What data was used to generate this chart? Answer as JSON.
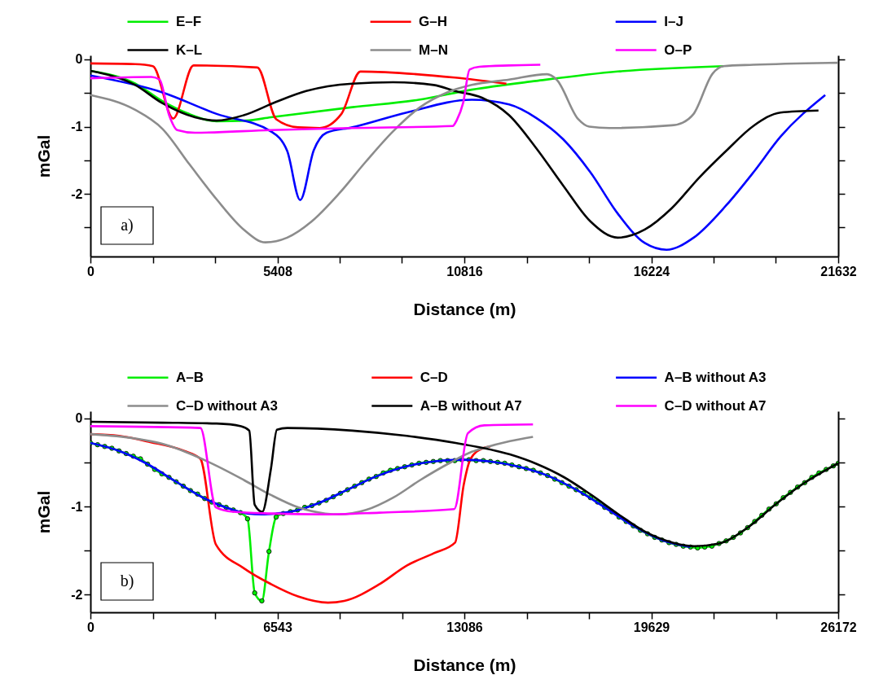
{
  "chart_data": [
    {
      "type": "line",
      "xlabel": "Distance (m)",
      "ylabel": "mGal",
      "legend": "top",
      "grid": false,
      "annotations": [
        "a)"
      ],
      "xlim": [
        0,
        21632
      ],
      "ylim": [
        -2.93,
        0.06
      ],
      "xticks": [
        0,
        {
          "value": 1802.67,
          "label": null
        },
        {
          "value": 3605.33,
          "label": null
        },
        5408,
        {
          "value": 7210.67,
          "label": null
        },
        {
          "value": 9013.33,
          "label": null
        },
        10816,
        {
          "value": 12618.67,
          "label": null
        },
        {
          "value": 14421.33,
          "label": null
        },
        16224,
        {
          "value": 18026.67,
          "label": null
        },
        {
          "value": 19829.33,
          "label": null
        },
        21632
      ],
      "yticks": [
        0,
        {
          "value": -0.5,
          "label": null
        },
        -1,
        {
          "value": -1.5,
          "label": null
        },
        -2,
        {
          "value": -2.5,
          "label": null
        }
      ],
      "series": [
        {
          "name": "E–F",
          "color": "#00ee00",
          "x": [
            0,
            1300,
            2080,
            2800,
            3650,
            4500,
            5220,
            7575,
            9500,
            11030,
            12896,
            15251,
            18313
          ],
          "values": [
            -0.17,
            -0.36,
            -0.62,
            -0.8,
            -0.92,
            -0.91,
            -0.86,
            -0.71,
            -0.6,
            -0.45,
            -0.32,
            -0.18,
            -0.1
          ]
        },
        {
          "name": "G–H",
          "color": "#ff0000",
          "x": [
            0,
            1295,
            1806,
            2394,
            2983,
            4828,
            5377,
            6005,
            6633,
            7261,
            7811,
            10541,
            12033
          ],
          "values": [
            -0.06,
            -0.07,
            -0.1,
            -0.88,
            -0.09,
            -0.12,
            -0.89,
            -1.01,
            -1.02,
            -0.81,
            -0.18,
            -0.27,
            -0.36
          ]
        },
        {
          "name": "I–J",
          "color": "#0000ff",
          "x": [
            0,
            2080,
            3650,
            5220,
            5691,
            6068,
            6461,
            6830,
            7575,
            9145,
            11030,
            12111,
            12896,
            13681,
            14466,
            15251,
            16036,
            16664,
            17449,
            18391,
            19176,
            19961,
            21256
          ],
          "values": [
            -0.24,
            -0.49,
            -0.81,
            -1.07,
            -1.36,
            -2.09,
            -1.35,
            -1.09,
            -1.01,
            -0.79,
            -0.6,
            -0.67,
            -0.87,
            -1.19,
            -1.68,
            -2.29,
            -2.73,
            -2.83,
            -2.65,
            -2.17,
            -1.68,
            -1.15,
            -0.53
          ]
        },
        {
          "name": "K–L",
          "color": "#000000",
          "x": [
            0,
            1295,
            2080,
            3022,
            3650,
            4435,
            5377,
            6240,
            7575,
            8753,
            9930,
            10541,
            11326,
            12111,
            12896,
            13681,
            14466,
            15251,
            16036,
            16821,
            17606,
            18391,
            19176,
            19961,
            21060
          ],
          "values": [
            -0.17,
            -0.38,
            -0.65,
            -0.86,
            -0.91,
            -0.83,
            -0.63,
            -0.47,
            -0.36,
            -0.34,
            -0.38,
            -0.47,
            -0.57,
            -0.83,
            -1.32,
            -1.88,
            -2.41,
            -2.65,
            -2.53,
            -2.21,
            -1.76,
            -1.36,
            -0.99,
            -0.79,
            -0.76
          ]
        },
        {
          "name": "M–N",
          "color": "#8c8c8c",
          "x": [
            0,
            1295,
            2080,
            2865,
            3650,
            4435,
            5063,
            5691,
            6398,
            7183,
            7968,
            8753,
            9538,
            10323,
            11030,
            12111,
            13210,
            13485,
            14113,
            14427,
            15016,
            16821,
            17135,
            17449,
            17999,
            18313,
            19176,
            21609
          ],
          "values": [
            -0.53,
            -0.75,
            -1.03,
            -1.56,
            -2.08,
            -2.53,
            -2.72,
            -2.65,
            -2.41,
            -2.0,
            -1.52,
            -1.07,
            -0.71,
            -0.49,
            -0.38,
            -0.3,
            -0.22,
            -0.3,
            -0.89,
            -1.0,
            -1.02,
            -0.98,
            -0.94,
            -0.81,
            -0.21,
            -0.1,
            -0.08,
            -0.05
          ]
        },
        {
          "name": "O–P",
          "color": "#ff00ff",
          "x": [
            0,
            1766,
            2002,
            2277,
            2512,
            3022,
            5220,
            7575,
            10480,
            10600,
            10780,
            10970,
            11250,
            12111,
            13014
          ],
          "values": [
            -0.28,
            -0.26,
            -0.3,
            -0.83,
            -1.05,
            -1.09,
            -1.05,
            -1.02,
            -0.99,
            -0.9,
            -0.65,
            -0.15,
            -0.11,
            -0.09,
            -0.08
          ]
        }
      ]
    },
    {
      "type": "line",
      "xlabel": "Distance (m)",
      "ylabel": "mGal",
      "legend": "top",
      "grid": false,
      "annotations": [
        "b)"
      ],
      "xlim": [
        0,
        26172
      ],
      "ylim": [
        -2.2,
        0.08
      ],
      "xticks": [
        0,
        {
          "value": 2181,
          "label": null
        },
        {
          "value": 4362,
          "label": null
        },
        6543,
        {
          "value": 8724,
          "label": null
        },
        {
          "value": 10905,
          "label": null
        },
        13086,
        {
          "value": 15267,
          "label": null
        },
        {
          "value": 17448,
          "label": null
        },
        19629,
        {
          "value": 21810,
          "label": null
        },
        {
          "value": 23991,
          "label": null
        },
        26172
      ],
      "yticks": [
        0,
        {
          "value": -0.5,
          "label": null
        },
        -1,
        {
          "value": -1.5,
          "label": null
        },
        -2
      ],
      "series": [
        {
          "name": "A–B",
          "color": "#00ee00",
          "marker": "circle",
          "x": [
            0,
            250,
            500,
            750,
            1000,
            1250,
            1500,
            1750,
            2000,
            2250,
            2500,
            2750,
            3000,
            3250,
            3500,
            3750,
            4000,
            4250,
            4500,
            4750,
            5000,
            5250,
            5500,
            5750,
            6000,
            6250,
            6500,
            6750,
            7000,
            7250,
            7500,
            7750,
            8000,
            8250,
            8500,
            8750,
            9000,
            9250,
            9500,
            9750,
            10000,
            10250,
            10500,
            10750,
            11000,
            11250,
            11500,
            11750,
            12000,
            12250,
            12500,
            12750,
            13000,
            13250,
            13500,
            13750,
            14000,
            14250,
            14500,
            14750,
            15000,
            15250,
            15500,
            15750,
            16000,
            16250,
            16500,
            16750,
            17000,
            17250,
            17500,
            17750,
            18000,
            18250,
            18500,
            18750,
            19000,
            19250,
            19500,
            19750,
            20000,
            20250,
            20500,
            20750,
            21000,
            21250,
            21500,
            21750,
            22000,
            22250,
            22500,
            22750,
            23000,
            23250,
            23500,
            23750,
            24000,
            24250,
            24500,
            24750,
            25000,
            25250,
            25500,
            25750,
            26000,
            26172
          ],
          "values": [
            -0.28,
            -0.3,
            -0.32,
            -0.34,
            -0.37,
            -0.4,
            -0.43,
            -0.46,
            -0.52,
            -0.58,
            -0.63,
            -0.67,
            -0.72,
            -0.77,
            -0.82,
            -0.86,
            -0.91,
            -0.95,
            -0.98,
            -1.01,
            -1.04,
            -1.07,
            -1.14,
            -1.98,
            -2.07,
            -1.51,
            -1.12,
            -1.08,
            -1.06,
            -1.04,
            -1.01,
            -0.99,
            -0.96,
            -0.93,
            -0.89,
            -0.85,
            -0.81,
            -0.77,
            -0.73,
            -0.69,
            -0.66,
            -0.62,
            -0.59,
            -0.57,
            -0.55,
            -0.53,
            -0.51,
            -0.5,
            -0.49,
            -0.48,
            -0.48,
            -0.48,
            -0.47,
            -0.47,
            -0.48,
            -0.48,
            -0.49,
            -0.5,
            -0.51,
            -0.53,
            -0.55,
            -0.57,
            -0.59,
            -0.62,
            -0.65,
            -0.69,
            -0.73,
            -0.77,
            -0.81,
            -0.85,
            -0.9,
            -0.95,
            -1.01,
            -1.06,
            -1.12,
            -1.17,
            -1.22,
            -1.27,
            -1.31,
            -1.35,
            -1.38,
            -1.41,
            -1.43,
            -1.45,
            -1.46,
            -1.47,
            -1.46,
            -1.45,
            -1.42,
            -1.39,
            -1.35,
            -1.3,
            -1.24,
            -1.17,
            -1.1,
            -1.03,
            -0.97,
            -0.9,
            -0.84,
            -0.78,
            -0.73,
            -0.67,
            -0.62,
            -0.58,
            -0.54,
            -0.51
          ]
        },
        {
          "name": "C–D",
          "color": "#ff0000",
          "x": [
            0,
            1000,
            2090,
            3279,
            3849,
            4390,
            5369,
            6319,
            7270,
            8315,
            8885,
            10120,
            11071,
            12021,
            12762,
            13067,
            13305,
            13732,
            14000
          ],
          "values": [
            -0.18,
            -0.2,
            -0.27,
            -0.37,
            -0.46,
            -1.43,
            -1.7,
            -1.88,
            -2.02,
            -2.09,
            -2.07,
            -1.88,
            -1.67,
            -1.53,
            -1.41,
            -0.75,
            -0.46,
            -0.34,
            -0.32
          ]
        },
        {
          "name": "A–B without A3",
          "color": "#0000ff",
          "x": [
            0,
            1000,
            2000,
            3000,
            4000,
            5000,
            5500,
            6000,
            6500,
            7000,
            8000,
            9000,
            10000,
            11000,
            12000,
            13000,
            14000,
            15000,
            16000,
            17000,
            18000,
            19000,
            20000,
            21000
          ],
          "values": [
            -0.28,
            -0.37,
            -0.52,
            -0.72,
            -0.91,
            -1.04,
            -1.08,
            -1.09,
            -1.08,
            -1.06,
            -0.96,
            -0.81,
            -0.66,
            -0.55,
            -0.49,
            -0.47,
            -0.49,
            -0.55,
            -0.65,
            -0.81,
            -1.01,
            -1.22,
            -1.38,
            -1.46
          ]
        },
        {
          "name": "C–D without A3",
          "color": "#8c8c8c",
          "x": [
            0,
            1568,
            2518,
            3469,
            4419,
            5369,
            6319,
            7270,
            8220,
            8695,
            9645,
            10596,
            11546,
            12497,
            13351,
            13732,
            14682,
            15489
          ],
          "values": [
            -0.18,
            -0.23,
            -0.29,
            -0.4,
            -0.54,
            -0.7,
            -0.87,
            -1.01,
            -1.08,
            -1.09,
            -1.04,
            -0.9,
            -0.7,
            -0.52,
            -0.38,
            -0.34,
            -0.26,
            -0.21
          ]
        },
        {
          "name": "A–B without A7",
          "color": "#000000",
          "x": [
            0,
            2518,
            4419,
            5274,
            5559,
            5749,
            6015,
            6319,
            6528,
            6890,
            9170,
            11071,
            12782,
            14682,
            15633,
            16583,
            17533,
            18484,
            19434,
            20384,
            21144,
            22000,
            23000,
            24000,
            25000,
            26172
          ],
          "values": [
            -0.04,
            -0.05,
            -0.06,
            -0.09,
            -0.14,
            -0.98,
            -1.06,
            -0.57,
            -0.13,
            -0.11,
            -0.14,
            -0.2,
            -0.28,
            -0.41,
            -0.52,
            -0.67,
            -0.87,
            -1.09,
            -1.29,
            -1.41,
            -1.45,
            -1.42,
            -1.24,
            -0.97,
            -0.73,
            -0.51
          ]
        },
        {
          "name": "C–D without A7",
          "color": "#ff00ff",
          "x": [
            0,
            3849,
            4390,
            4989,
            6319,
            8220,
            10120,
            12734,
            13209,
            13780,
            15489
          ],
          "values": [
            -0.09,
            -0.11,
            -1.01,
            -1.06,
            -1.08,
            -1.09,
            -1.07,
            -1.03,
            -0.17,
            -0.08,
            -0.07
          ]
        }
      ]
    }
  ]
}
